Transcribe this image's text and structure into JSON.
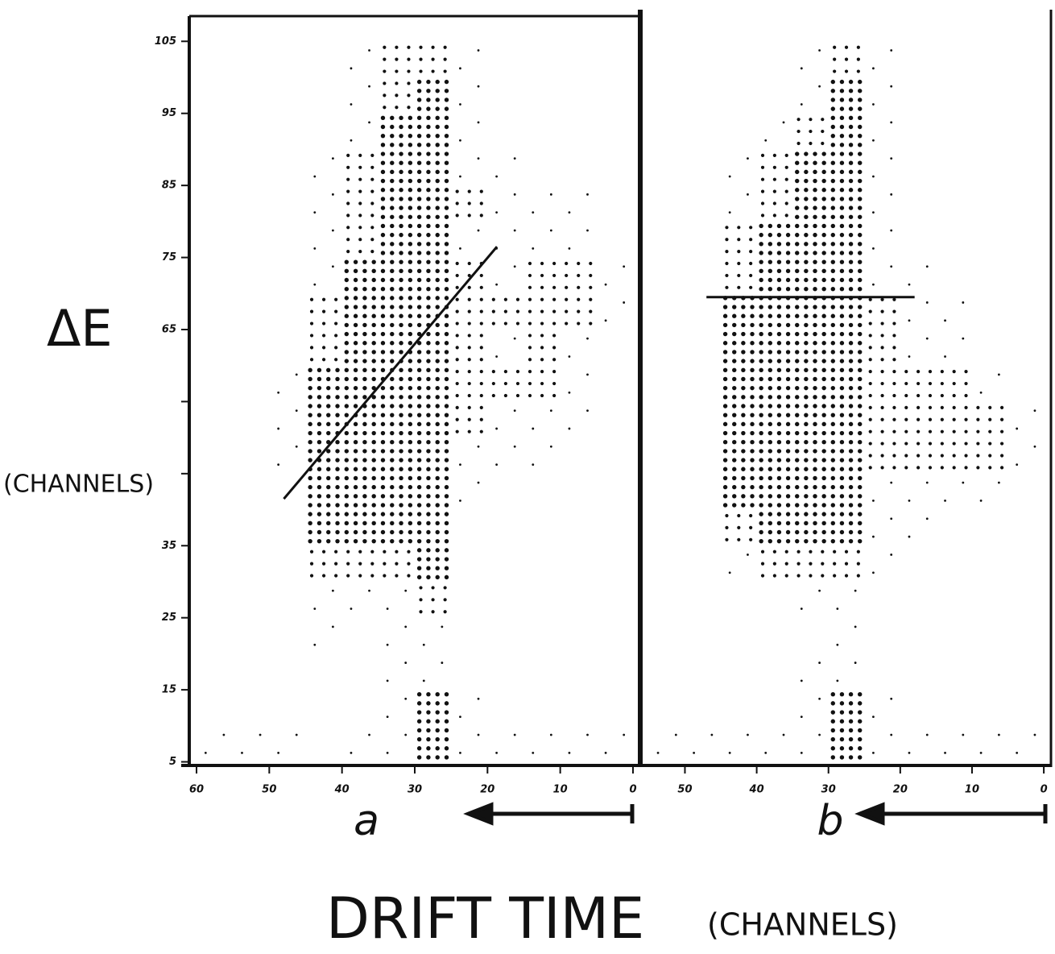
{
  "y_label": "ΔE",
  "y_unit": "(CHANNELS)",
  "x_label": "DRIFT TIME",
  "x_unit": "(CHANNELS)",
  "chart_data": [
    {
      "type": "density",
      "panel_label": "a",
      "xlim": [
        61,
        -1
      ],
      "ylim": [
        4.5,
        108.5
      ],
      "xticks": [
        60,
        50,
        40,
        30,
        20,
        10,
        0
      ],
      "yticks": [
        105,
        95,
        85,
        75,
        65,
        {
          "value": 55,
          "label": null
        },
        {
          "value": 45,
          "label": null
        },
        35,
        25,
        15,
        5
      ],
      "x_bins": [
        0,
        5,
        10,
        15,
        20,
        25,
        30,
        35,
        40,
        45,
        50,
        55,
        60
      ],
      "y_bins": [
        5,
        10,
        15,
        20,
        25,
        30,
        35,
        40,
        45,
        50,
        55,
        60,
        65,
        70,
        75,
        80,
        85,
        90,
        95,
        100,
        105
      ],
      "counts": [
        [
          1,
          1,
          1,
          1,
          1,
          3,
          1,
          1,
          0,
          1,
          1,
          1
        ],
        [
          0,
          0,
          0,
          0,
          1,
          3,
          1,
          0,
          0,
          0,
          0,
          0
        ],
        [
          0,
          0,
          0,
          0,
          0,
          1,
          1,
          0,
          0,
          0,
          0,
          0
        ],
        [
          0,
          0,
          0,
          0,
          0,
          1,
          1,
          0,
          1,
          0,
          0,
          0
        ],
        [
          0,
          0,
          0,
          0,
          0,
          2,
          1,
          1,
          1,
          0,
          0,
          0
        ],
        [
          0,
          0,
          0,
          0,
          0,
          3,
          2,
          2,
          2,
          0,
          0,
          0
        ],
        [
          0,
          0,
          0,
          0,
          0,
          3,
          3,
          3,
          3,
          0,
          0,
          0
        ],
        [
          0,
          0,
          0,
          0,
          1,
          3,
          3,
          3,
          3,
          0,
          0,
          0
        ],
        [
          0,
          0,
          1,
          1,
          1,
          3,
          3,
          3,
          3,
          1,
          0,
          0
        ],
        [
          0,
          1,
          1,
          1,
          2,
          3,
          3,
          3,
          3,
          1,
          0,
          0
        ],
        [
          0,
          1,
          2,
          2,
          2,
          3,
          3,
          3,
          3,
          1,
          0,
          0
        ],
        [
          0,
          1,
          2,
          1,
          2,
          3,
          3,
          3,
          2,
          0,
          0,
          0
        ],
        [
          1,
          2,
          2,
          2,
          2,
          3,
          3,
          3,
          2,
          0,
          0,
          0
        ],
        [
          1,
          2,
          2,
          1,
          2,
          3,
          3,
          3,
          1,
          0,
          0,
          0
        ],
        [
          0,
          1,
          1,
          1,
          1,
          3,
          3,
          2,
          1,
          0,
          0,
          0
        ],
        [
          0,
          1,
          1,
          1,
          2,
          3,
          3,
          2,
          1,
          0,
          0,
          0
        ],
        [
          0,
          0,
          0,
          1,
          1,
          3,
          3,
          2,
          1,
          0,
          0,
          0
        ],
        [
          0,
          0,
          0,
          0,
          1,
          3,
          3,
          1,
          0,
          0,
          0,
          0
        ],
        [
          0,
          0,
          0,
          0,
          1,
          3,
          2,
          1,
          0,
          0,
          0,
          0
        ],
        [
          0,
          0,
          0,
          0,
          1,
          2,
          2,
          1,
          0,
          0,
          0,
          0
        ]
      ],
      "fit_line": {
        "x": [
          48,
          18.7
        ],
        "y": [
          41.5,
          76.5
        ]
      }
    },
    {
      "type": "density",
      "panel_label": "b",
      "xlim": [
        56,
        -1
      ],
      "ylim": [
        4.5,
        108.5
      ],
      "xticks": [
        50,
        40,
        30,
        20,
        10,
        0
      ],
      "x_bins": [
        0,
        5,
        10,
        15,
        20,
        25,
        30,
        35,
        40,
        45,
        50,
        55
      ],
      "y_bins": [
        5,
        10,
        15,
        20,
        25,
        30,
        35,
        40,
        45,
        50,
        55,
        60,
        65,
        70,
        75,
        80,
        85,
        90,
        95,
        100,
        105
      ],
      "counts": [
        [
          1,
          1,
          1,
          1,
          1,
          3,
          1,
          1,
          1,
          1,
          1
        ],
        [
          0,
          0,
          0,
          0,
          1,
          3,
          1,
          0,
          0,
          0,
          0
        ],
        [
          0,
          0,
          0,
          0,
          0,
          1,
          1,
          0,
          0,
          0,
          0
        ],
        [
          0,
          0,
          0,
          0,
          0,
          1,
          0,
          0,
          0,
          0,
          0
        ],
        [
          0,
          0,
          0,
          0,
          0,
          1,
          1,
          0,
          0,
          0,
          0
        ],
        [
          0,
          0,
          0,
          0,
          1,
          2,
          2,
          2,
          1,
          0,
          0
        ],
        [
          0,
          0,
          0,
          1,
          1,
          3,
          3,
          3,
          2,
          0,
          0
        ],
        [
          0,
          1,
          1,
          1,
          1,
          3,
          3,
          3,
          3,
          0,
          0
        ],
        [
          1,
          2,
          2,
          2,
          2,
          3,
          3,
          3,
          3,
          0,
          0
        ],
        [
          1,
          2,
          2,
          2,
          2,
          3,
          3,
          3,
          3,
          0,
          0
        ],
        [
          0,
          1,
          2,
          2,
          2,
          3,
          3,
          3,
          3,
          0,
          0
        ],
        [
          0,
          0,
          1,
          1,
          2,
          3,
          3,
          3,
          3,
          0,
          0
        ],
        [
          0,
          0,
          1,
          1,
          2,
          3,
          3,
          3,
          3,
          0,
          0
        ],
        [
          0,
          0,
          0,
          1,
          1,
          3,
          3,
          3,
          2,
          0,
          0
        ],
        [
          0,
          0,
          0,
          0,
          1,
          3,
          3,
          3,
          2,
          0,
          0
        ],
        [
          0,
          0,
          0,
          0,
          1,
          3,
          3,
          2,
          1,
          0,
          0
        ],
        [
          0,
          0,
          0,
          0,
          1,
          3,
          3,
          2,
          1,
          0,
          0
        ],
        [
          0,
          0,
          0,
          0,
          1,
          3,
          2,
          1,
          0,
          0,
          0
        ],
        [
          0,
          0,
          0,
          0,
          1,
          3,
          1,
          0,
          0,
          0,
          0
        ],
        [
          0,
          0,
          0,
          0,
          1,
          2,
          1,
          0,
          0,
          0,
          0
        ]
      ],
      "fit_line": {
        "x": [
          47,
          18
        ],
        "y": [
          69.5,
          69.5
        ]
      }
    }
  ]
}
